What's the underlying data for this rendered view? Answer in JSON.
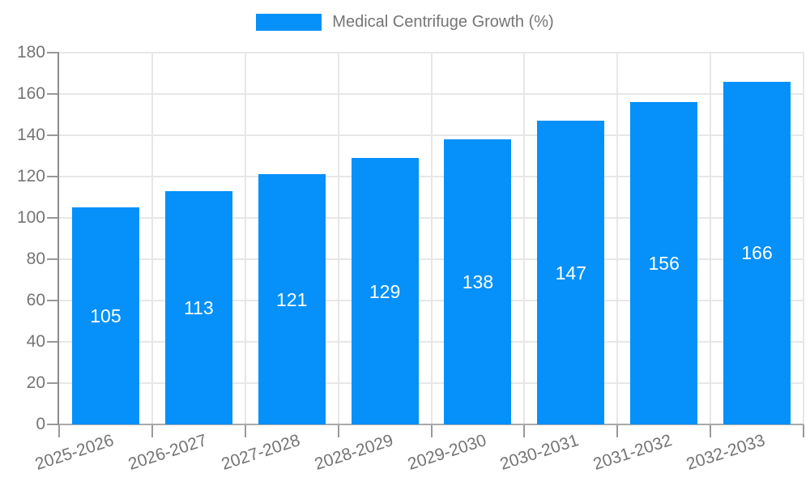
{
  "legend": {
    "label": "Medical Centrifuge Growth (%)"
  },
  "colors": {
    "bar": "#0590fa",
    "grid": "#e7e7e7",
    "y_axis": "#8c8c8c",
    "x_axis": "#aaaaaa",
    "tick": "#999999",
    "axis_text": "#757575",
    "value_label_text": "#ffffff",
    "background": "#ffffff"
  },
  "chart_data": {
    "type": "bar",
    "title": "",
    "legend": "Medical Centrifuge Growth (%)",
    "legend_position": "top-center",
    "categories": [
      "2025-2026",
      "2026-2027",
      "2027-2028",
      "2028-2029",
      "2029-2030",
      "2030-2031",
      "2031-2032",
      "2032-2033"
    ],
    "values": [
      105,
      113,
      121,
      129,
      138,
      147,
      156,
      166
    ],
    "value_labels_shown": true,
    "value_label_placement": "centered-inside-bar",
    "xlabel": "",
    "ylabel": "",
    "ylim": [
      0,
      180
    ],
    "ytick_step": 20,
    "yticks": [
      0,
      20,
      40,
      60,
      80,
      100,
      120,
      140,
      160,
      180
    ],
    "grid": true,
    "x_label_rotation_deg": -18
  }
}
